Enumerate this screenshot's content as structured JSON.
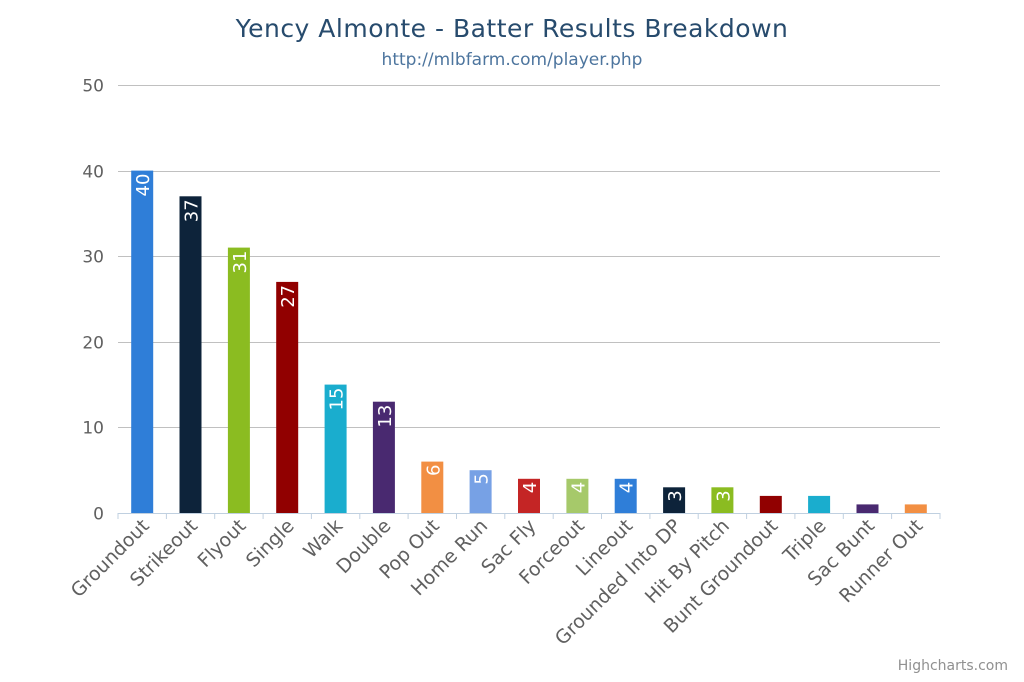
{
  "chart_data": {
    "type": "bar",
    "title": "Yency Almonte - Batter Results Breakdown",
    "subtitle": "http://mlbfarm.com/player.php",
    "credits": "Highcharts.com",
    "xlabel": "",
    "ylabel": "",
    "ylim": [
      0,
      50
    ],
    "yticks": [
      0,
      10,
      20,
      30,
      40,
      50
    ],
    "grid": true,
    "legend": "none",
    "categories": [
      "Groundout",
      "Strikeout",
      "Flyout",
      "Single",
      "Walk",
      "Double",
      "Pop Out",
      "Home Run",
      "Sac Fly",
      "Forceout",
      "Lineout",
      "Grounded Into DP",
      "Hit By Pitch",
      "Bunt Groundout",
      "Triple",
      "Sac Bunt",
      "Runner Out"
    ],
    "values": [
      40,
      37,
      31,
      27,
      15,
      13,
      6,
      5,
      4,
      4,
      4,
      3,
      3,
      2,
      2,
      1,
      1
    ],
    "data_labels": [
      "40",
      "37",
      "31",
      "27",
      "15",
      "13",
      "6",
      "5",
      "4",
      "4",
      "4",
      "3",
      "3",
      "",
      "",
      "",
      ""
    ],
    "colors": [
      "#2f7ed8",
      "#0d233a",
      "#8bbc21",
      "#910000",
      "#1aadce",
      "#492970",
      "#f28f43",
      "#77a1e5",
      "#c42525",
      "#a6c96a",
      "#2f7ed8",
      "#0d233a",
      "#8bbc21",
      "#910000",
      "#1aadce",
      "#492970",
      "#f28f43"
    ]
  }
}
